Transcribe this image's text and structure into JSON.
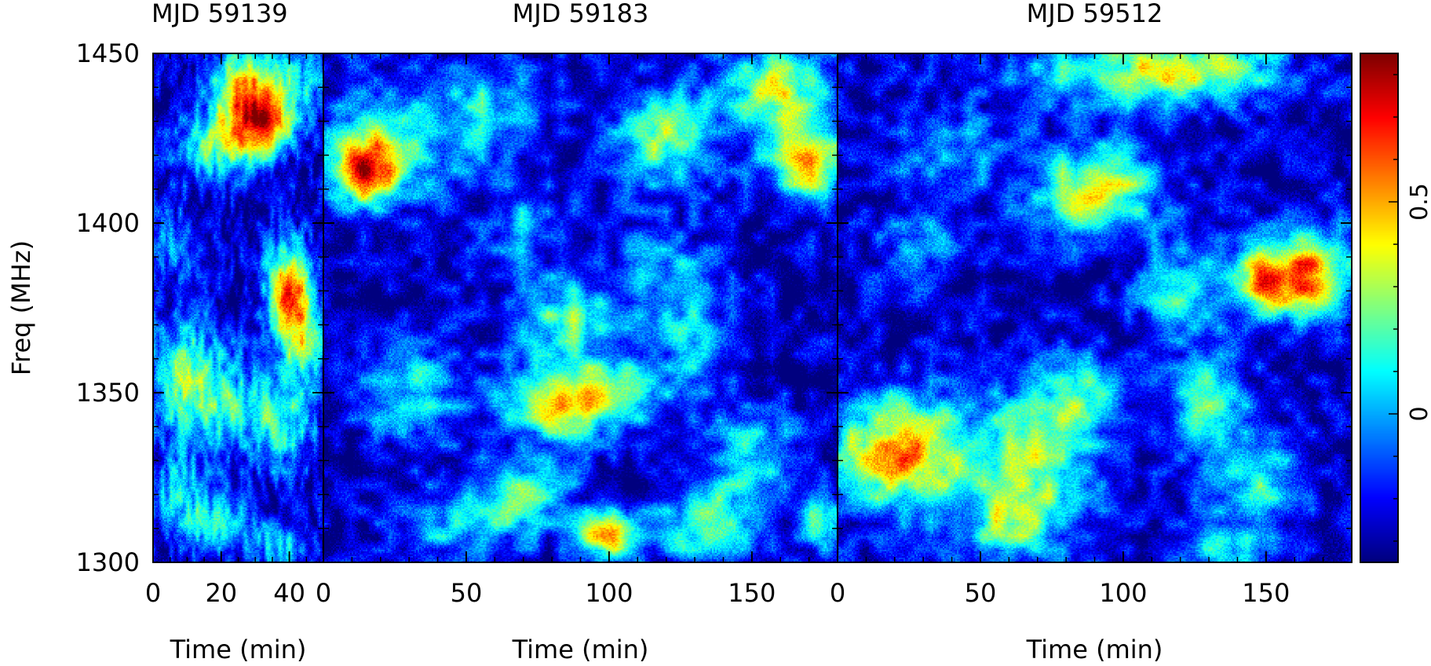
{
  "chart_data": {
    "type": "heatmap",
    "ylabel": "Freq (MHz)",
    "ylim": [
      1300,
      1450
    ],
    "yticks": [
      1300,
      1350,
      1400,
      1450
    ],
    "colorbar": {
      "ticks": [
        0,
        0.5
      ],
      "range": [
        -0.35,
        0.85
      ],
      "colormap": [
        "#00007f",
        "#0000ff",
        "#00ffff",
        "#ffff00",
        "#ff0000",
        "#7f0000"
      ]
    },
    "panels": [
      {
        "title": "MJD 59139",
        "xlabel": "Time (min)",
        "xlim": [
          0,
          50
        ],
        "xticks": [
          0,
          20,
          40
        ],
        "blobs": [
          {
            "t": 28,
            "f": 1438,
            "st": 7,
            "sf": 10,
            "a": 0.85
          },
          {
            "t": 34,
            "f": 1428,
            "st": 6,
            "sf": 6,
            "a": 0.55
          },
          {
            "t": 18,
            "f": 1422,
            "st": 8,
            "sf": 7,
            "a": 0.45
          },
          {
            "t": 44,
            "f": 1442,
            "st": 5,
            "sf": 8,
            "a": 0.35
          },
          {
            "t": 40,
            "f": 1381,
            "st": 5,
            "sf": 9,
            "a": 0.85
          },
          {
            "t": 44,
            "f": 1366,
            "st": 5,
            "sf": 8,
            "a": 0.55
          },
          {
            "t": 10,
            "f": 1355,
            "st": 8,
            "sf": 12,
            "a": 0.5
          },
          {
            "t": 25,
            "f": 1345,
            "st": 10,
            "sf": 9,
            "a": 0.35
          },
          {
            "t": 40,
            "f": 1340,
            "st": 6,
            "sf": 10,
            "a": 0.35
          },
          {
            "t": 8,
            "f": 1320,
            "st": 7,
            "sf": 8,
            "a": 0.35
          },
          {
            "t": 20,
            "f": 1310,
            "st": 6,
            "sf": 6,
            "a": 0.4
          },
          {
            "t": 38,
            "f": 1305,
            "st": 6,
            "sf": 5,
            "a": 0.35
          },
          {
            "t": 5,
            "f": 1395,
            "st": 5,
            "sf": 8,
            "a": 0.25
          }
        ]
      },
      {
        "title": "MJD 59183",
        "xlabel": "Time (min)",
        "xlim": [
          0,
          180
        ],
        "xticks": [
          0,
          50,
          100,
          150
        ],
        "blobs": [
          {
            "t": 15,
            "f": 1415,
            "st": 8,
            "sf": 7,
            "a": 0.8
          },
          {
            "t": 25,
            "f": 1425,
            "st": 18,
            "sf": 12,
            "a": 0.4
          },
          {
            "t": 60,
            "f": 1435,
            "st": 14,
            "sf": 10,
            "a": 0.3
          },
          {
            "t": 70,
            "f": 1400,
            "st": 10,
            "sf": 8,
            "a": 0.3
          },
          {
            "t": 120,
            "f": 1425,
            "st": 12,
            "sf": 10,
            "a": 0.55
          },
          {
            "t": 160,
            "f": 1440,
            "st": 14,
            "sf": 10,
            "a": 0.6
          },
          {
            "t": 170,
            "f": 1418,
            "st": 10,
            "sf": 8,
            "a": 0.75
          },
          {
            "t": 85,
            "f": 1372,
            "st": 12,
            "sf": 8,
            "a": 0.5
          },
          {
            "t": 95,
            "f": 1350,
            "st": 18,
            "sf": 8,
            "a": 0.6
          },
          {
            "t": 80,
            "f": 1345,
            "st": 12,
            "sf": 6,
            "a": 0.4
          },
          {
            "t": 30,
            "f": 1350,
            "st": 15,
            "sf": 10,
            "a": 0.35
          },
          {
            "t": 120,
            "f": 1385,
            "st": 12,
            "sf": 10,
            "a": 0.3
          },
          {
            "t": 150,
            "f": 1330,
            "st": 12,
            "sf": 10,
            "a": 0.4
          },
          {
            "t": 70,
            "f": 1320,
            "st": 12,
            "sf": 8,
            "a": 0.45
          },
          {
            "t": 100,
            "f": 1308,
            "st": 8,
            "sf": 5,
            "a": 0.8
          },
          {
            "t": 135,
            "f": 1310,
            "st": 12,
            "sf": 8,
            "a": 0.5
          },
          {
            "t": 45,
            "f": 1310,
            "st": 14,
            "sf": 8,
            "a": 0.3
          },
          {
            "t": 175,
            "f": 1312,
            "st": 5,
            "sf": 6,
            "a": 0.5
          },
          {
            "t": 130,
            "f": 1365,
            "st": 8,
            "sf": 10,
            "a": 0.3
          }
        ]
      },
      {
        "title": "MJD 59512",
        "xlabel": "Time (min)",
        "xlim": [
          0,
          180
        ],
        "xticks": [
          0,
          50,
          100,
          150
        ],
        "blobs": [
          {
            "t": 22,
            "f": 1332,
            "st": 18,
            "sf": 12,
            "a": 0.8
          },
          {
            "t": 70,
            "f": 1330,
            "st": 15,
            "sf": 15,
            "a": 0.55
          },
          {
            "t": 85,
            "f": 1350,
            "st": 10,
            "sf": 8,
            "a": 0.35
          },
          {
            "t": 90,
            "f": 1410,
            "st": 15,
            "sf": 9,
            "a": 0.7
          },
          {
            "t": 165,
            "f": 1385,
            "st": 12,
            "sf": 9,
            "a": 0.85
          },
          {
            "t": 148,
            "f": 1382,
            "st": 8,
            "sf": 7,
            "a": 0.55
          },
          {
            "t": 120,
            "f": 1380,
            "st": 10,
            "sf": 10,
            "a": 0.4
          },
          {
            "t": 130,
            "f": 1345,
            "st": 10,
            "sf": 12,
            "a": 0.45
          },
          {
            "t": 150,
            "f": 1325,
            "st": 10,
            "sf": 9,
            "a": 0.4
          },
          {
            "t": 135,
            "f": 1305,
            "st": 10,
            "sf": 6,
            "a": 0.45
          },
          {
            "t": 100,
            "f": 1445,
            "st": 30,
            "sf": 8,
            "a": 0.45
          },
          {
            "t": 40,
            "f": 1420,
            "st": 14,
            "sf": 8,
            "a": 0.3
          },
          {
            "t": 130,
            "f": 1445,
            "st": 20,
            "sf": 6,
            "a": 0.35
          },
          {
            "t": 60,
            "f": 1310,
            "st": 12,
            "sf": 8,
            "a": 0.4
          },
          {
            "t": 30,
            "f": 1395,
            "st": 12,
            "sf": 8,
            "a": 0.25
          }
        ]
      }
    ]
  }
}
